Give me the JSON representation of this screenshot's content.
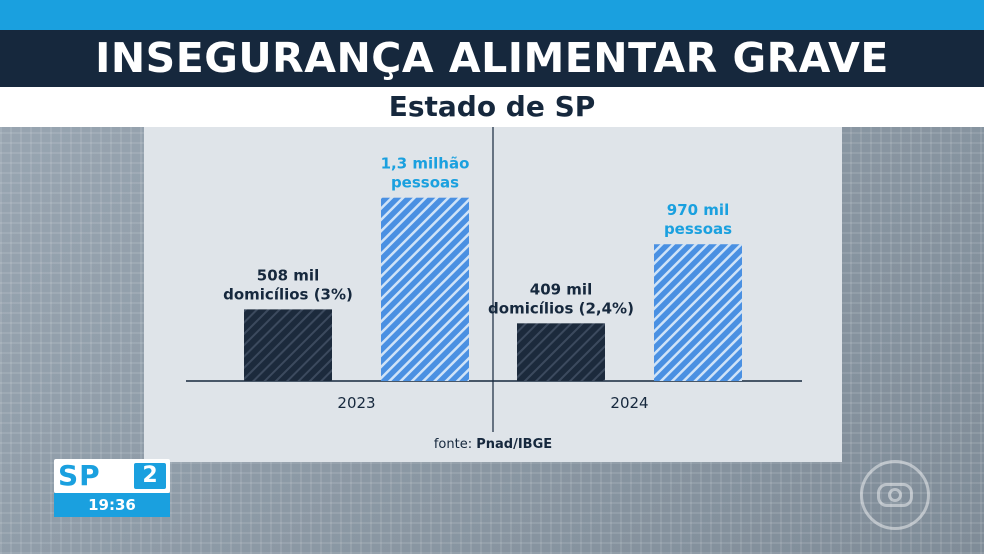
{
  "header": {
    "title": "INSEGURANÇA ALIMENTAR GRAVE",
    "subtitle": "Estado de SP"
  },
  "source": {
    "prefix": "fonte:",
    "name": "Pnad/IBGE"
  },
  "logo": {
    "program": "SP",
    "edition": "2",
    "time": "19:36"
  },
  "colors": {
    "accent": "#1aa0df",
    "dark": "#16283d",
    "bar_dark": "#1c2a3c",
    "bar_light": "#4a90e2"
  },
  "chart_data": {
    "type": "bar",
    "categories": [
      "2023",
      "2024"
    ],
    "series": [
      {
        "metric": "domicílios",
        "values": [
          508,
          409
        ],
        "labels": [
          [
            "508 mil",
            "domicílios (3%)"
          ],
          [
            "409 mil",
            "domicílios (2,4%)"
          ]
        ],
        "shares_percent": [
          3,
          2.4
        ],
        "color": "#1c2a3c"
      },
      {
        "metric": "pessoas",
        "values": [
          1300,
          970
        ],
        "labels": [
          [
            "1,3 milhão",
            "pessoas"
          ],
          [
            "970 mil",
            "pessoas"
          ]
        ],
        "color": "#4a90e2"
      }
    ],
    "unit": "mil",
    "legend": "none",
    "grid": false
  }
}
